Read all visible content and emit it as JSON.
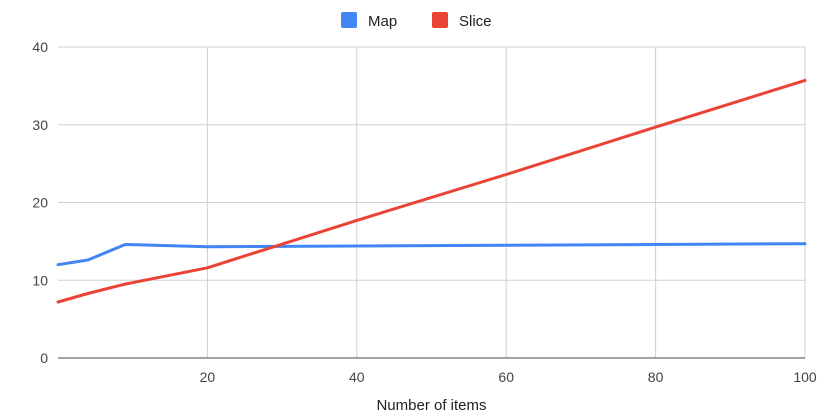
{
  "chart_data": {
    "type": "line",
    "xlabel": "Number of items",
    "ylabel": "",
    "xlim": [
      0,
      100
    ],
    "ylim": [
      0,
      40
    ],
    "x_ticks": [
      20,
      40,
      60,
      80,
      100
    ],
    "y_ticks": [
      0,
      10,
      20,
      30,
      40
    ],
    "grid": true,
    "legend_position": "top-center",
    "series": [
      {
        "name": "Map",
        "color": "#4285f4",
        "x": [
          0,
          4,
          9,
          20,
          40,
          60,
          80,
          100
        ],
        "y": [
          12.0,
          12.6,
          14.6,
          14.3,
          14.4,
          14.5,
          14.6,
          14.7
        ]
      },
      {
        "name": "Slice",
        "color": "#ea4335",
        "x": [
          0,
          4,
          9,
          20,
          40,
          60,
          80,
          100
        ],
        "y": [
          7.2,
          8.3,
          9.5,
          11.6,
          17.7,
          23.6,
          29.7,
          35.7
        ]
      }
    ]
  }
}
